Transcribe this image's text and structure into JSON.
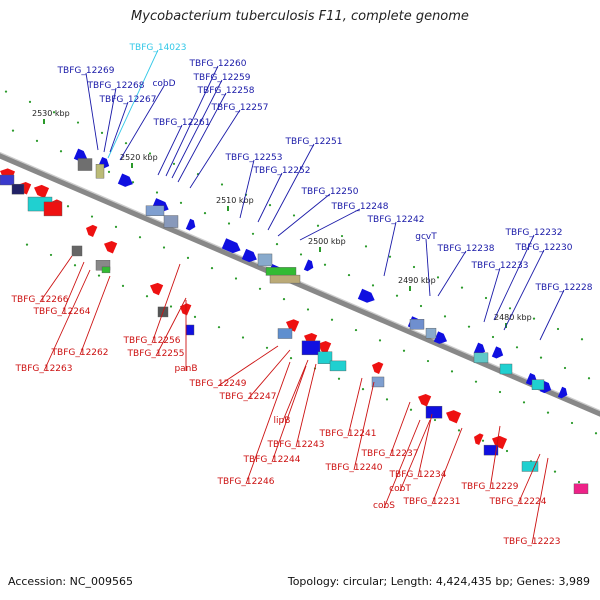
{
  "title": "Mycobacterium tuberculosis F11, complete genome",
  "footer": {
    "accession": "Accession: NC_009565",
    "info": "Topology: circular; Length: 4,424,435 bp; Genes: 3,989"
  },
  "colors": {
    "forward_gene": "#1010e0",
    "reverse_gene": "#ee1111",
    "forward_label": "#1a1aa8",
    "reverse_label": "#cc1111",
    "highlight_label": "#33c8e8",
    "backbone": "#888888",
    "tick": "#2a9a2a"
  },
  "ticks": [
    "2530 kbp",
    "2520 kbp",
    "2510 kbp",
    "2500 kbp",
    "2490 kbp",
    "2480 kbp"
  ],
  "labels_top": [
    "TBFG_14023",
    "TBFG_12269",
    "TBFG_12268",
    "TBFG_12267",
    "cobD",
    "TBFG_12260",
    "TBFG_12259",
    "TBFG_12258",
    "TBFG_12261",
    "TBFG_12257",
    "TBFG_12251",
    "TBFG_12253",
    "TBFG_12252",
    "TBFG_12250",
    "TBFG_12248",
    "TBFG_12242",
    "gcvT",
    "TBFG_12238",
    "TBFG_12233",
    "TBFG_12232",
    "TBFG_12230",
    "TBFG_12228"
  ],
  "labels_bottom": [
    "TBFG_12266",
    "TBFG_12264",
    "TBFG_12262",
    "TBFG_12263",
    "TBFG_12256",
    "TBFG_12255",
    "panB",
    "TBFG_12249",
    "TBFG_12247",
    "lipB",
    "TBFG_12243",
    "TBFG_12244",
    "TBFG_12246",
    "TBFG_12241",
    "TBFG_12240",
    "TBFG_12237",
    "cobT",
    "cobS",
    "TBFG_12234",
    "TBFG_12231",
    "TBFG_12229",
    "TBFG_12224",
    "TBFG_12223"
  ]
}
